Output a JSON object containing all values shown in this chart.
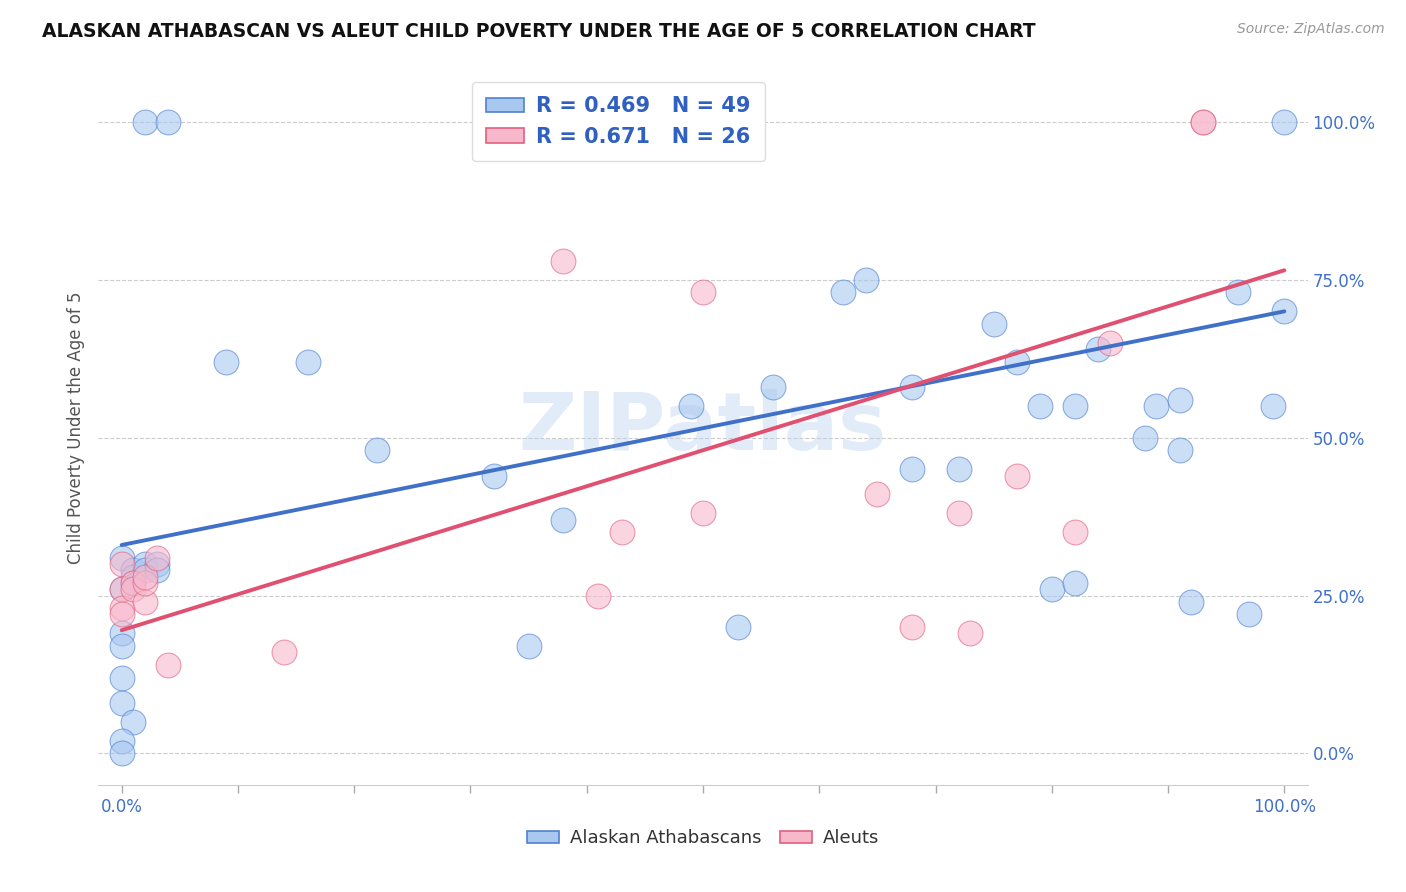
{
  "title": "ALASKAN ATHABASCAN VS ALEUT CHILD POVERTY UNDER THE AGE OF 5 CORRELATION CHART",
  "source": "Source: ZipAtlas.com",
  "ylabel": "Child Poverty Under the Age of 5",
  "xlim": [
    -0.02,
    1.02
  ],
  "ylim": [
    -0.05,
    1.08
  ],
  "xtick_positions": [
    0.0,
    0.1,
    0.2,
    0.3,
    0.4,
    0.5,
    0.6,
    0.7,
    0.8,
    0.9,
    1.0
  ],
  "xtick_labels_show": [
    "0.0%",
    "",
    "",
    "",
    "",
    "",
    "",
    "",
    "",
    "",
    "100.0%"
  ],
  "ytick_positions": [
    0.0,
    0.25,
    0.5,
    0.75,
    1.0
  ],
  "ytick_labels": [
    "0.0%",
    "25.0%",
    "50.0%",
    "75.0%",
    "100.0%"
  ],
  "blue_R": "0.469",
  "blue_N": "49",
  "pink_R": "0.671",
  "pink_N": "26",
  "blue_color": "#a8c8f0",
  "pink_color": "#f8b8cc",
  "blue_edge_color": "#5080d0",
  "pink_edge_color": "#e06080",
  "blue_line_color": "#4070c8",
  "pink_line_color": "#e05070",
  "watermark": "ZIPatlas",
  "blue_scatter_x": [
    0.02,
    0.04,
    0.09,
    0.16,
    0.0,
    0.0,
    0.01,
    0.01,
    0.01,
    0.02,
    0.02,
    0.03,
    0.03,
    0.0,
    0.0,
    0.0,
    0.0,
    0.01,
    0.22,
    0.32,
    0.38,
    0.49,
    0.53,
    0.56,
    0.62,
    0.64,
    0.68,
    0.68,
    0.72,
    0.75,
    0.77,
    0.79,
    0.8,
    0.82,
    0.82,
    0.84,
    0.88,
    0.89,
    0.91,
    0.91,
    0.92,
    0.96,
    0.97,
    0.99,
    1.0,
    1.0,
    0.35,
    0.0,
    0.0
  ],
  "blue_scatter_y": [
    1.0,
    1.0,
    0.62,
    0.62,
    0.31,
    0.26,
    0.29,
    0.28,
    0.27,
    0.3,
    0.29,
    0.3,
    0.29,
    0.19,
    0.17,
    0.12,
    0.08,
    0.05,
    0.48,
    0.44,
    0.37,
    0.55,
    0.2,
    0.58,
    0.73,
    0.75,
    0.58,
    0.45,
    0.45,
    0.68,
    0.62,
    0.55,
    0.26,
    0.27,
    0.55,
    0.64,
    0.5,
    0.55,
    0.56,
    0.48,
    0.24,
    0.73,
    0.22,
    0.55,
    0.7,
    1.0,
    0.17,
    0.02,
    0.0
  ],
  "pink_scatter_x": [
    0.0,
    0.0,
    0.0,
    0.0,
    0.01,
    0.01,
    0.02,
    0.02,
    0.02,
    0.03,
    0.04,
    0.14,
    0.38,
    0.41,
    0.43,
    0.5,
    0.5,
    0.65,
    0.68,
    0.72,
    0.73,
    0.77,
    0.82,
    0.85,
    0.93,
    0.93
  ],
  "pink_scatter_y": [
    0.3,
    0.26,
    0.23,
    0.22,
    0.27,
    0.26,
    0.24,
    0.27,
    0.28,
    0.31,
    0.14,
    0.16,
    0.78,
    0.25,
    0.35,
    0.73,
    0.38,
    0.41,
    0.2,
    0.38,
    0.19,
    0.44,
    0.35,
    0.65,
    1.0,
    1.0
  ],
  "blue_line_x": [
    0.0,
    1.0
  ],
  "blue_line_y": [
    0.33,
    0.7
  ],
  "pink_line_x": [
    0.0,
    1.0
  ],
  "pink_line_y": [
    0.195,
    0.765
  ]
}
